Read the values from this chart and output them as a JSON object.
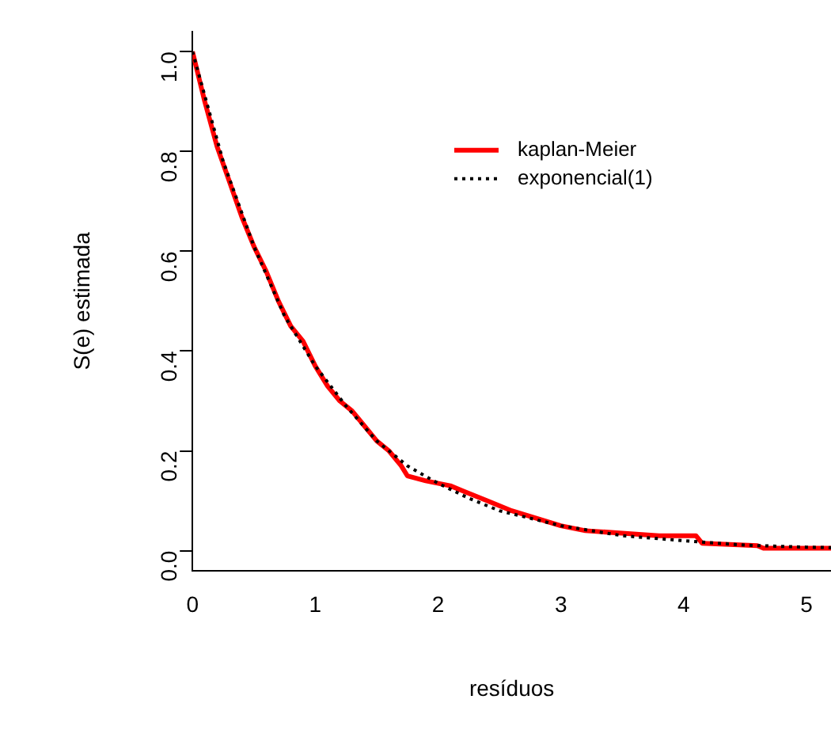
{
  "chart_data": {
    "type": "line",
    "xlabel": "resíduos",
    "ylabel": "S(e) estimada",
    "xlim": [
      0,
      5.2
    ],
    "ylim": [
      -0.04,
      1.04
    ],
    "xticks": [
      0,
      1,
      2,
      3,
      4,
      5
    ],
    "yticks": [
      {
        "value": 0,
        "label": "0.0"
      },
      {
        "value": 0.2,
        "label": "0.2"
      },
      {
        "value": 0.4,
        "label": "0.4"
      },
      {
        "value": 0.6,
        "label": "0.6"
      },
      {
        "value": 0.8,
        "label": "0.8"
      },
      {
        "value": 1,
        "label": "1.0"
      }
    ],
    "grid": false,
    "legend": "top right",
    "series": [
      {
        "name": "kaplan-Meier",
        "color": "#ff0000",
        "line_style": "solid",
        "x": [
          0,
          0.1,
          0.2,
          0.3,
          0.4,
          0.5,
          0.6,
          0.7,
          0.8,
          0.9,
          1.0,
          1.1,
          1.2,
          1.3,
          1.4,
          1.5,
          1.6,
          1.7,
          1.75,
          1.9,
          2.1,
          2.2,
          2.4,
          2.6,
          2.8,
          3.0,
          3.2,
          3.5,
          3.8,
          4.1,
          4.15,
          4.6,
          4.65,
          5.2
        ],
        "values": [
          1.0,
          0.9,
          0.81,
          0.74,
          0.67,
          0.61,
          0.56,
          0.5,
          0.45,
          0.42,
          0.37,
          0.33,
          0.3,
          0.28,
          0.25,
          0.22,
          0.2,
          0.17,
          0.15,
          0.14,
          0.13,
          0.12,
          0.1,
          0.08,
          0.065,
          0.05,
          0.04,
          0.035,
          0.03,
          0.03,
          0.015,
          0.01,
          0.005,
          0.005
        ]
      },
      {
        "name": "exponencial(1)",
        "color": "#000000",
        "line_style": "dotted",
        "x": [
          0,
          0.25,
          0.5,
          0.75,
          1,
          1.25,
          1.5,
          1.75,
          2,
          2.25,
          2.5,
          2.75,
          3,
          3.5,
          4,
          4.5,
          5,
          5.2
        ],
        "values": [
          1,
          0.78,
          0.61,
          0.47,
          0.37,
          0.29,
          0.22,
          0.17,
          0.135,
          0.105,
          0.08,
          0.065,
          0.05,
          0.03,
          0.02,
          0.011,
          0.007,
          0.006
        ]
      }
    ]
  }
}
